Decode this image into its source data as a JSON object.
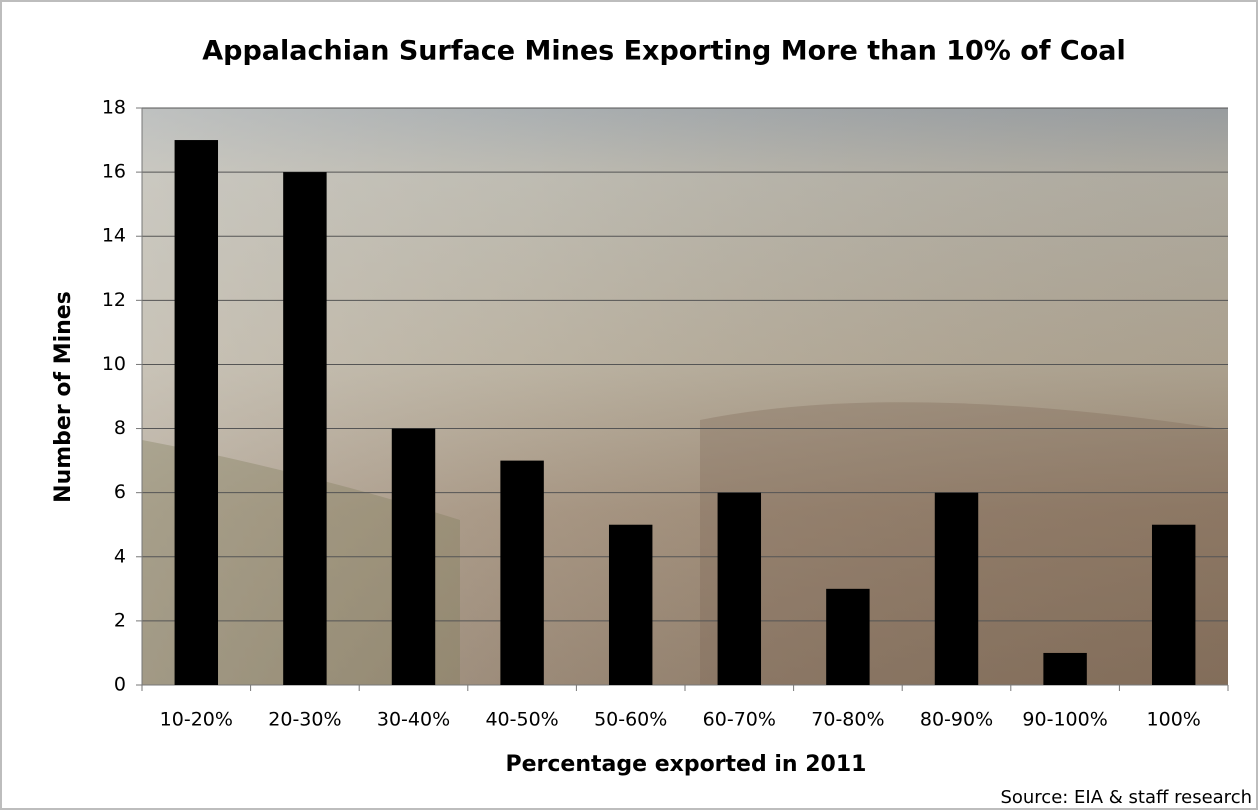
{
  "chart_data": {
    "type": "bar",
    "title": "Appalachian Surface Mines Exporting More than 10% of Coal",
    "x_label": "Percentage exported in 2011",
    "y_label": "Number of Mines",
    "source": "Source: EIA & staff research",
    "categories": [
      "10-20%",
      "20-30%",
      "30-40%",
      "40-50%",
      "50-60%",
      "60-70%",
      "70-80%",
      "80-90%",
      "90-100%",
      "100%"
    ],
    "values": [
      17,
      16,
      8,
      7,
      5,
      6,
      3,
      6,
      1,
      5
    ],
    "color": "#000000",
    "ylim": [
      0,
      18
    ],
    "yticks": [
      0,
      2,
      4,
      6,
      8,
      10,
      12,
      14,
      16,
      18
    ],
    "grid": true
  }
}
